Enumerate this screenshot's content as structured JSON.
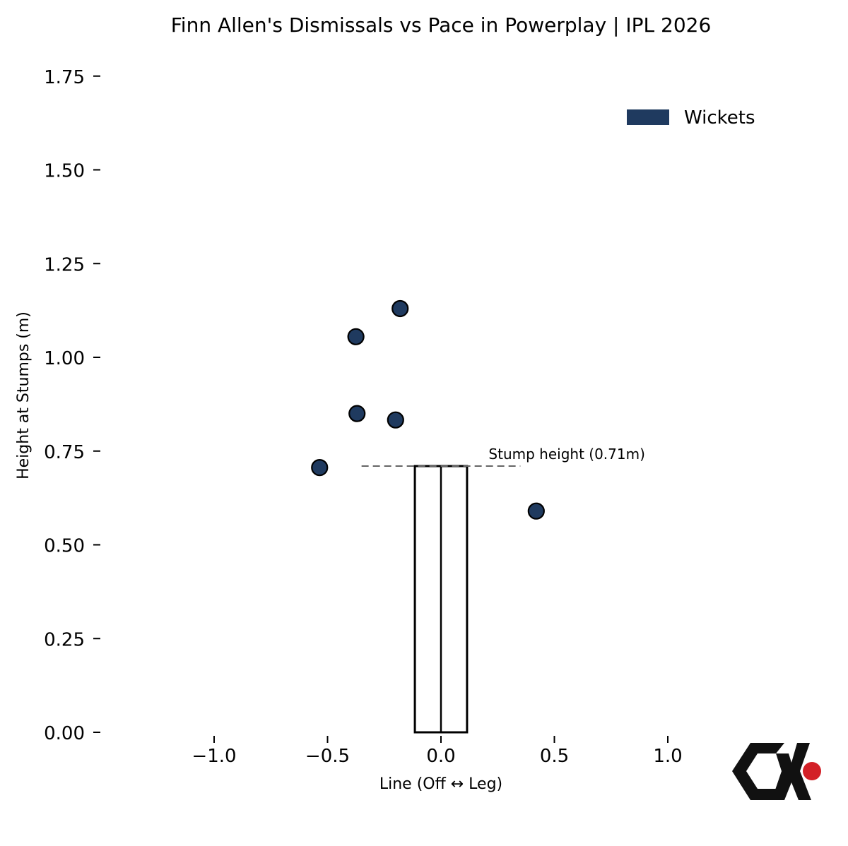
{
  "chart_data": {
    "type": "scatter",
    "title": "Finn Allen's Dismissals vs Pace in Powerplay | IPL 2026",
    "xlabel": "Line (Off ↔ Leg)",
    "ylabel": "Height at Stumps (m)",
    "xlim": [
      -1.0,
      1.0
    ],
    "ylim": [
      0.0,
      1.75
    ],
    "x_ticks": [
      -1.0,
      -0.5,
      0.0,
      0.5,
      1.0
    ],
    "x_tick_labels": [
      "−1.0",
      "−0.5",
      "0.0",
      "0.5",
      "1.0"
    ],
    "y_ticks": [
      0.0,
      0.25,
      0.5,
      0.75,
      1.0,
      1.25,
      1.5,
      1.75
    ],
    "y_tick_labels": [
      "0.00",
      "0.25",
      "0.50",
      "0.75",
      "1.00",
      "1.25",
      "1.50",
      "1.75"
    ],
    "grid": false,
    "legend_position": "top-right",
    "series": [
      {
        "name": "Wickets",
        "color": "#1f3a5f",
        "points": [
          {
            "x": -0.18,
            "y": 1.13
          },
          {
            "x": -0.375,
            "y": 1.055
          },
          {
            "x": -0.37,
            "y": 0.85
          },
          {
            "x": -0.2,
            "y": 0.833
          },
          {
            "x": -0.535,
            "y": 0.706
          },
          {
            "x": 0.42,
            "y": 0.59
          }
        ]
      }
    ],
    "stumps": {
      "x_left": -0.115,
      "x_right": 0.115,
      "height": 0.71
    },
    "stump_line": {
      "y": 0.71,
      "x_from": -0.35,
      "x_to": 0.35,
      "label": "Stump height (0.71m)",
      "label_x": 0.21
    }
  },
  "logo_colors": {
    "mark": "#111111",
    "dot": "#d32027"
  }
}
